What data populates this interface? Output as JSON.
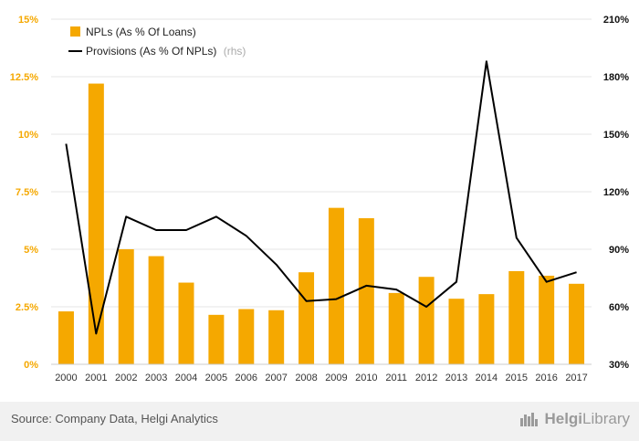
{
  "chart_data": {
    "type": "bar+line",
    "categories": [
      "2000",
      "2001",
      "2002",
      "2003",
      "2004",
      "2005",
      "2006",
      "2007",
      "2008",
      "2009",
      "2010",
      "2011",
      "2012",
      "2013",
      "2014",
      "2015",
      "2016",
      "2017"
    ],
    "series": [
      {
        "name": "NPLs (As % Of Loans)",
        "type": "bar",
        "axis": "left",
        "color": "#f5a800",
        "values": [
          2.3,
          12.2,
          5.0,
          4.7,
          3.55,
          2.15,
          2.4,
          2.35,
          4.0,
          6.8,
          6.35,
          3.1,
          3.8,
          2.85,
          3.05,
          4.05,
          3.85,
          3.5
        ]
      },
      {
        "name": "Provisions (As % Of NPLs)",
        "name_suffix": "(rhs)",
        "type": "line",
        "axis": "right",
        "color": "#000000",
        "values": [
          145,
          46,
          107,
          100,
          100,
          107,
          97,
          82,
          63,
          64,
          71,
          69,
          60,
          73,
          188,
          96,
          73,
          78
        ]
      }
    ],
    "y_left": {
      "ticks": [
        "0%",
        "2.5%",
        "5%",
        "7.5%",
        "10%",
        "12.5%",
        "15%"
      ],
      "ylim": [
        0,
        15
      ],
      "color": "#f5a800"
    },
    "y_right": {
      "ticks": [
        "30%",
        "60%",
        "90%",
        "120%",
        "150%",
        "180%",
        "210%"
      ],
      "ylim": [
        30,
        210
      ],
      "color": "#000000"
    },
    "grid": true,
    "legend_position": "top-left"
  },
  "footer": {
    "source": "Source: Company Data, Helgi Analytics",
    "brand_bold": "Helgi",
    "brand_light": "Library"
  },
  "colors": {
    "bar": "#f5a800",
    "line": "#000000",
    "grid": "#e6e6e6",
    "footer_bg": "#f1f1f1"
  },
  "icons": {
    "brand": "helgi-library-logo-icon"
  }
}
